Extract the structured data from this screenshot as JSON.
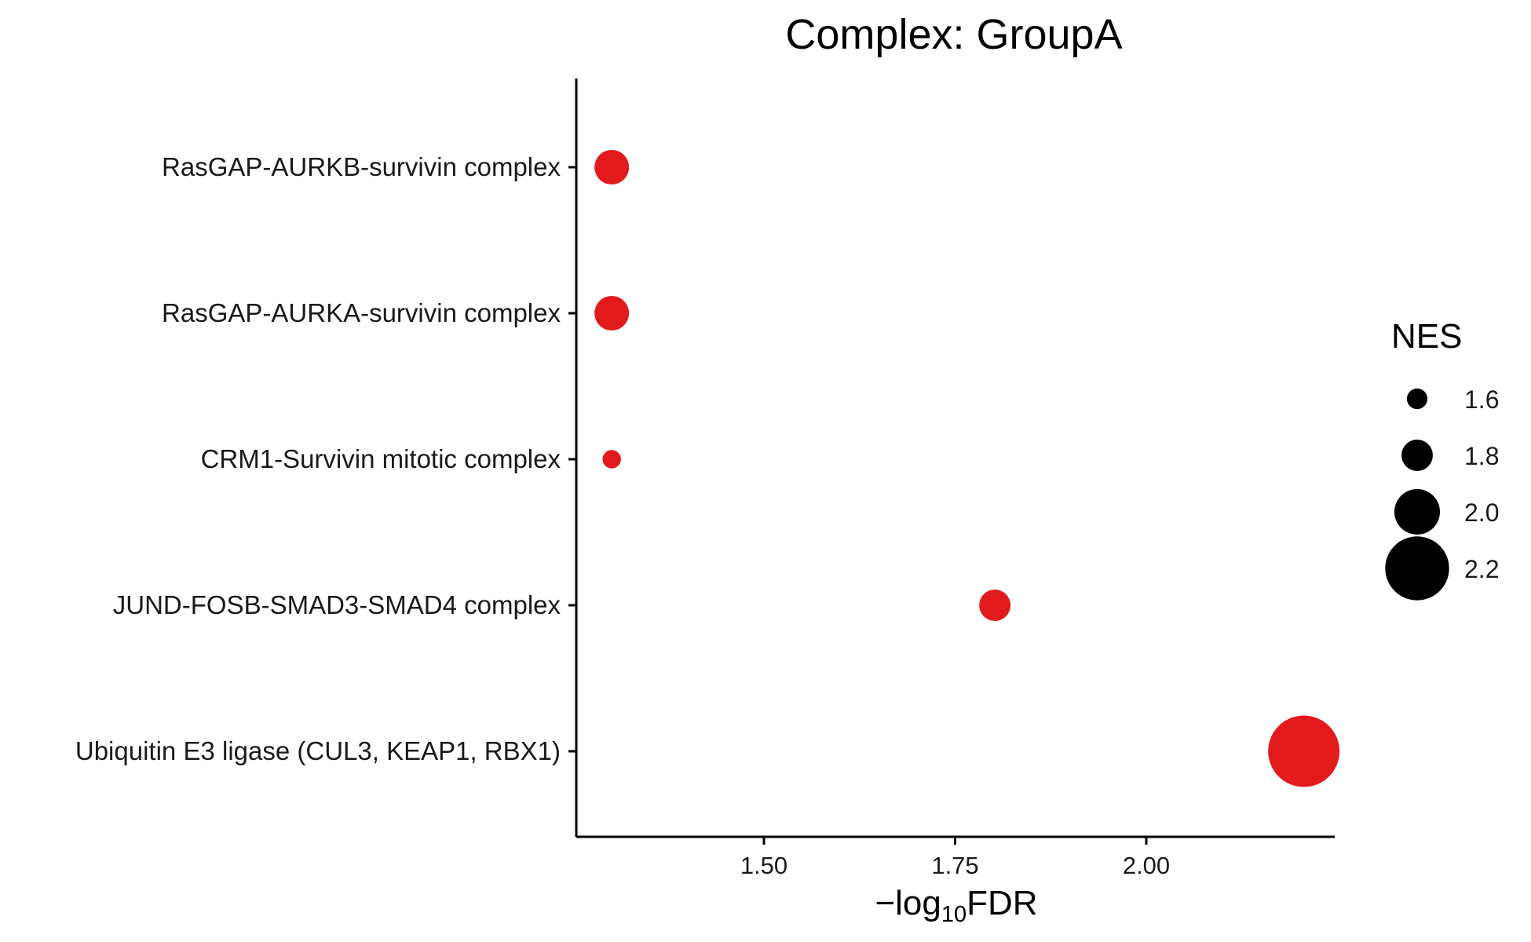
{
  "chart_data": {
    "type": "scatter",
    "title": "Complex: GroupA",
    "xlabel": {
      "prefix": "−log",
      "subscript": "10",
      "suffix": "FDR"
    },
    "ylabel": "",
    "xlim": [
      1.255,
      2.255
    ],
    "xticks": [
      1.5,
      1.75,
      2.0
    ],
    "xtick_labels": [
      "1.50",
      "1.75",
      "2.00"
    ],
    "grid": false,
    "point_color": "#E31A1C",
    "categories": [
      "RasGAP-AURKB-survivin complex",
      "RasGAP-AURKA-survivin complex",
      "CRM1-Survivin mitotic complex",
      "JUND-FOSB-SMAD3-SMAD4 complex",
      "Ubiquitin E3 ligase (CUL3, KEAP1, RBX1)"
    ],
    "x": [
      1.301,
      1.301,
      1.301,
      1.802,
      2.206
    ],
    "size_values": [
      1.85,
      1.85,
      1.55,
      1.8,
      2.27
    ],
    "legend": {
      "title": "NES",
      "placement": "right",
      "color": "#000000",
      "values": [
        1.6,
        1.8,
        2.0,
        2.2
      ],
      "labels": [
        "1.6",
        "1.8",
        "2.0",
        "2.2"
      ]
    }
  }
}
